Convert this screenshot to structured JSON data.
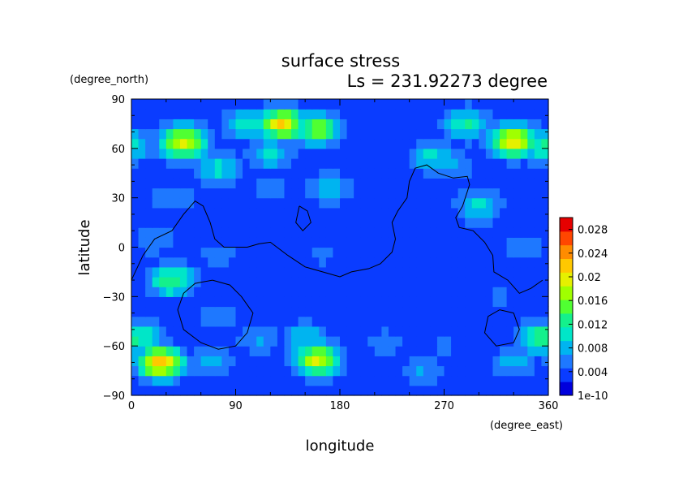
{
  "chart_data": {
    "type": "heatmap",
    "title": "surface stress",
    "subtitle": "Ls = 231.92273 degree",
    "xlabel": "longitude",
    "ylabel": "latitude",
    "x_unit": "(degree_east)",
    "y_unit": "(degree_north)",
    "xlim": [
      0,
      360
    ],
    "ylim": [
      -90,
      90
    ],
    "x_ticks": [
      0,
      90,
      180,
      270,
      360
    ],
    "y_ticks": [
      -90,
      -60,
      -30,
      0,
      30,
      60,
      90
    ],
    "x_tick_labels": [
      "0",
      "90",
      "180",
      "270",
      "360"
    ],
    "y_tick_labels": [
      "−90",
      "−60",
      "−30",
      "0",
      "30",
      "60",
      "90"
    ],
    "colorbar": {
      "min": 1e-10,
      "max": 0.03,
      "ticks": [
        1e-10,
        0.004,
        0.008,
        0.012,
        0.016,
        0.02,
        0.024,
        0.028
      ],
      "tick_labels": [
        "1e-10",
        "0.004",
        "0.008",
        "0.012",
        "0.016",
        "0.02",
        "0.024",
        "0.028"
      ],
      "colors": [
        "#0000dc",
        "#0a3cff",
        "#1e78ff",
        "#00b4f0",
        "#00e6c8",
        "#14f08c",
        "#50ff32",
        "#a0ff00",
        "#e6f000",
        "#ffc800",
        "#ff8c00",
        "#ff4600",
        "#e60000"
      ]
    },
    "background_value": 0.0025,
    "hotspots": [
      {
        "lon": 45,
        "lat": 64,
        "value": 0.02
      },
      {
        "lon": 15,
        "lat": 64,
        "value": 0.006
      },
      {
        "lon": 130,
        "lat": 75,
        "value": 0.021
      },
      {
        "lon": 160,
        "lat": 72,
        "value": 0.016
      },
      {
        "lon": 100,
        "lat": 75,
        "value": 0.011
      },
      {
        "lon": 75,
        "lat": 48,
        "value": 0.01
      },
      {
        "lon": 120,
        "lat": 57,
        "value": 0.01
      },
      {
        "lon": 35,
        "lat": 30,
        "value": 0.007
      },
      {
        "lon": 20,
        "lat": 5,
        "value": 0.007
      },
      {
        "lon": 35,
        "lat": -20,
        "value": 0.014
      },
      {
        "lon": 75,
        "lat": -5,
        "value": 0.006
      },
      {
        "lon": 75,
        "lat": -42,
        "value": 0.006
      },
      {
        "lon": 120,
        "lat": 35,
        "value": 0.006
      },
      {
        "lon": 170,
        "lat": 36,
        "value": 0.009
      },
      {
        "lon": 165,
        "lat": -5,
        "value": 0.005
      },
      {
        "lon": 260,
        "lat": 55,
        "value": 0.01
      },
      {
        "lon": 275,
        "lat": 50,
        "value": 0.008
      },
      {
        "lon": 290,
        "lat": 75,
        "value": 0.012
      },
      {
        "lon": 330,
        "lat": 65,
        "value": 0.021
      },
      {
        "lon": 355,
        "lat": 62,
        "value": 0.012
      },
      {
        "lon": 300,
        "lat": 25,
        "value": 0.01
      },
      {
        "lon": 340,
        "lat": 0,
        "value": 0.007
      },
      {
        "lon": 320,
        "lat": -30,
        "value": 0.005
      },
      {
        "lon": 25,
        "lat": -70,
        "value": 0.022
      },
      {
        "lon": 10,
        "lat": -55,
        "value": 0.011
      },
      {
        "lon": 70,
        "lat": -68,
        "value": 0.008
      },
      {
        "lon": 110,
        "lat": -56,
        "value": 0.007
      },
      {
        "lon": 160,
        "lat": -68,
        "value": 0.019
      },
      {
        "lon": 150,
        "lat": -55,
        "value": 0.009
      },
      {
        "lon": 220,
        "lat": -58,
        "value": 0.006
      },
      {
        "lon": 250,
        "lat": -75,
        "value": 0.007
      },
      {
        "lon": 270,
        "lat": -60,
        "value": 0.005
      },
      {
        "lon": 355,
        "lat": -55,
        "value": 0.014
      },
      {
        "lon": 330,
        "lat": -70,
        "value": 0.008
      }
    ],
    "contours": [
      [
        [
          0,
          -20
        ],
        [
          10,
          -5
        ],
        [
          20,
          5
        ],
        [
          35,
          10
        ],
        [
          45,
          20
        ],
        [
          55,
          28
        ],
        [
          62,
          25
        ],
        [
          68,
          15
        ],
        [
          72,
          5
        ],
        [
          80,
          0
        ],
        [
          100,
          0
        ],
        [
          110,
          2
        ],
        [
          120,
          3
        ],
        [
          135,
          -5
        ],
        [
          150,
          -12
        ],
        [
          165,
          -15
        ],
        [
          180,
          -18
        ],
        [
          190,
          -15
        ],
        [
          205,
          -13
        ],
        [
          215,
          -10
        ],
        [
          225,
          -3
        ],
        [
          228,
          5
        ],
        [
          225,
          15
        ],
        [
          230,
          22
        ],
        [
          238,
          30
        ],
        [
          240,
          40
        ],
        [
          245,
          48
        ],
        [
          255,
          50
        ],
        [
          265,
          45
        ],
        [
          278,
          42
        ],
        [
          290,
          43
        ],
        [
          292,
          38
        ],
        [
          286,
          25
        ],
        [
          280,
          18
        ],
        [
          283,
          12
        ],
        [
          295,
          10
        ],
        [
          305,
          3
        ],
        [
          312,
          -5
        ],
        [
          313,
          -15
        ],
        [
          325,
          -20
        ],
        [
          335,
          -28
        ],
        [
          345,
          -25
        ],
        [
          355,
          -20
        ]
      ],
      [
        [
          70,
          -20
        ],
        [
          85,
          -23
        ],
        [
          95,
          -30
        ],
        [
          105,
          -40
        ],
        [
          100,
          -52
        ],
        [
          90,
          -60
        ],
        [
          75,
          -62
        ],
        [
          60,
          -58
        ],
        [
          45,
          -50
        ],
        [
          40,
          -38
        ],
        [
          45,
          -28
        ],
        [
          55,
          -22
        ],
        [
          70,
          -20
        ]
      ],
      [
        [
          145,
          25
        ],
        [
          152,
          22
        ],
        [
          155,
          15
        ],
        [
          148,
          10
        ],
        [
          142,
          15
        ],
        [
          145,
          25
        ]
      ],
      [
        [
          330,
          -40
        ],
        [
          335,
          -50
        ],
        [
          330,
          -58
        ],
        [
          315,
          -60
        ],
        [
          305,
          -52
        ],
        [
          308,
          -42
        ],
        [
          318,
          -38
        ],
        [
          330,
          -40
        ]
      ]
    ]
  }
}
